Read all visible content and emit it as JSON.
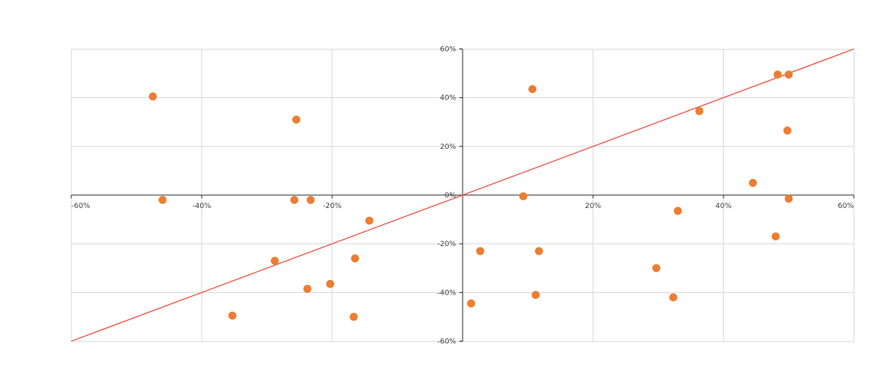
{
  "chart_data": {
    "type": "scatter",
    "title": "",
    "xlabel": "",
    "ylabel": "",
    "xlim": [
      -60,
      60
    ],
    "ylim": [
      -60,
      60
    ],
    "x_ticks": [
      "-60%",
      "-40%",
      "-20%",
      "0%",
      "20%",
      "40%",
      "60%"
    ],
    "y_ticks": [
      "-60%",
      "-40%",
      "-20%",
      "0%",
      "20%",
      "40%",
      "60%"
    ],
    "grid": true,
    "legend": "none",
    "colors": {
      "points": "#ED7D31",
      "diagonal": "#F04B3C",
      "axis": "#333333",
      "grid": "#D9D9D9"
    },
    "reference_line": {
      "from": [
        -60,
        -60
      ],
      "to": [
        60,
        60
      ]
    },
    "points": [
      {
        "label": "",
        "x": -47.5,
        "y": 40.5
      },
      {
        "label": "",
        "x": -25.5,
        "y": 31
      },
      {
        "label": "",
        "x": -46,
        "y": -2
      },
      {
        "label": "",
        "x": -23.3,
        "y": -2
      },
      {
        "label": "",
        "x": -25.8,
        "y": -2
      },
      {
        "label": "",
        "x": -14.3,
        "y": -10.5
      },
      {
        "label": "",
        "x": -28.8,
        "y": -27
      },
      {
        "label": "",
        "x": -16.5,
        "y": -26
      },
      {
        "label": "",
        "x": -20.3,
        "y": -36.5
      },
      {
        "label": "",
        "x": -23.8,
        "y": -38.5
      },
      {
        "label": "",
        "x": -35.3,
        "y": -49.5
      },
      {
        "label": "",
        "x": -16.7,
        "y": -50
      },
      {
        "label": "",
        "x": 10.7,
        "y": 43.5
      },
      {
        "label": "",
        "x": 36.3,
        "y": 34.5
      },
      {
        "label": "",
        "x": 48.3,
        "y": 49.5
      },
      {
        "label": "",
        "x": 50,
        "y": 49.5
      },
      {
        "label": "",
        "x": 49.8,
        "y": 26.5
      },
      {
        "label": "",
        "x": 44.5,
        "y": 5
      },
      {
        "label": "",
        "x": 9.3,
        "y": -0.5
      },
      {
        "label": "",
        "x": 50,
        "y": -1.5
      },
      {
        "label": "",
        "x": 33,
        "y": -6.5
      },
      {
        "label": "",
        "x": 48,
        "y": -17
      },
      {
        "label": "",
        "x": 2.7,
        "y": -23
      },
      {
        "label": "",
        "x": 11.7,
        "y": -23
      },
      {
        "label": "",
        "x": 29.7,
        "y": -30
      },
      {
        "label": "",
        "x": 11.2,
        "y": -41
      },
      {
        "label": "",
        "x": 32.3,
        "y": -42
      },
      {
        "label": "",
        "x": 1.3,
        "y": -44.5
      }
    ]
  }
}
